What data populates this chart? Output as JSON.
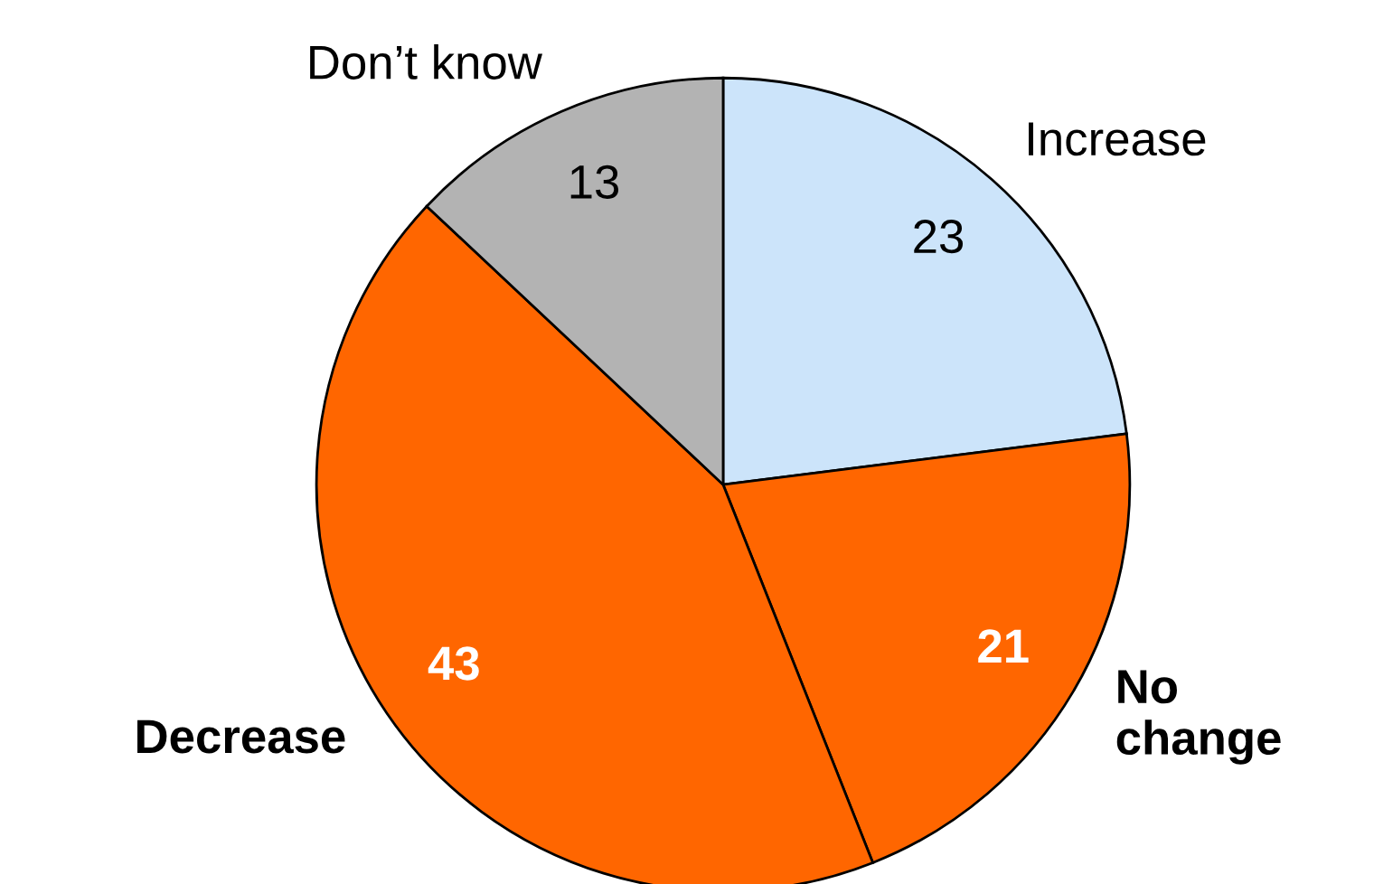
{
  "chart_data": {
    "type": "pie",
    "categories": [
      "Increase",
      "No\nchange",
      "Decrease",
      "Don’t know"
    ],
    "values": [
      23,
      21,
      43,
      13
    ],
    "colors": [
      "#cce4fa",
      "#ff6600",
      "#ff6600",
      "#b3b3b3"
    ],
    "data_labels": true,
    "legend": false
  }
}
